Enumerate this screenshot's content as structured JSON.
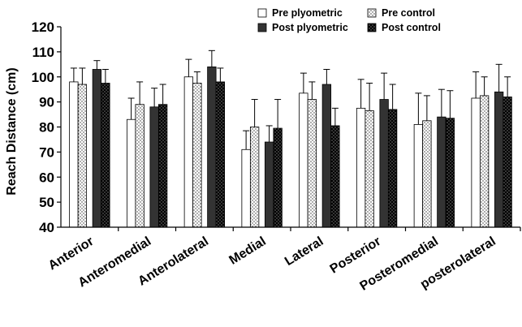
{
  "chart_data": {
    "type": "bar",
    "title": "",
    "xlabel": "",
    "ylabel": "Reach Distance (cm)",
    "ylim": [
      40,
      120
    ],
    "yticks": [
      40,
      50,
      60,
      70,
      80,
      90,
      100,
      110,
      120
    ],
    "grid": false,
    "legend_position": "top-right",
    "categories": [
      "Anterior",
      "Anteromedial",
      "Anterolateral",
      "Medial",
      "Lateral",
      "Posterior",
      "Posteromedial",
      "posterolateral"
    ],
    "series": [
      {
        "name": "Pre plyometric",
        "fill": "#ffffff",
        "pattern": "none",
        "values": [
          98,
          83,
          100,
          71,
          93.5,
          87.5,
          81,
          91.5
        ],
        "errors": [
          5.5,
          8.5,
          7,
          7.5,
          8,
          11.5,
          12.5,
          10.5
        ]
      },
      {
        "name": "Pre control",
        "fill": "#ffffff",
        "pattern": "dots",
        "values": [
          97,
          89,
          97.5,
          80,
          91,
          86.5,
          82.5,
          92.5
        ],
        "errors": [
          6.5,
          9,
          4.5,
          11,
          7,
          11,
          10,
          7.5
        ]
      },
      {
        "name": "Post plyometric",
        "fill": "#333333",
        "pattern": "none",
        "values": [
          103,
          88,
          104,
          74,
          97,
          91,
          84,
          94
        ],
        "errors": [
          3.5,
          7.5,
          6.5,
          6.5,
          6,
          10.5,
          11,
          11
        ]
      },
      {
        "name": "Post control",
        "fill": "#000000",
        "pattern": "light-dots",
        "values": [
          97.5,
          89,
          98,
          79.5,
          80.5,
          87,
          83.5,
          92
        ],
        "errors": [
          5.5,
          8,
          5.5,
          11.5,
          7,
          10,
          11,
          8
        ]
      }
    ]
  }
}
